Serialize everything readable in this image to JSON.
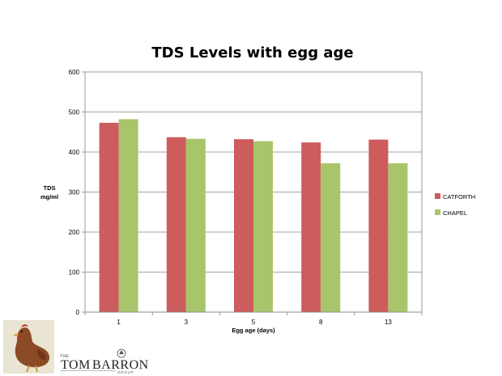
{
  "chart_data": {
    "type": "bar",
    "title": "TDS Levels with egg age",
    "xlabel": "Egg age (days)",
    "ylabel_lines": [
      "TDS",
      "mg/ml"
    ],
    "categories": [
      "1",
      "3",
      "5",
      "8",
      "13"
    ],
    "series": [
      {
        "name": "CATFORTH",
        "color": "#cd5c5c",
        "values": [
          473,
          437,
          432,
          424,
          431
        ]
      },
      {
        "name": "CHAPEL",
        "color": "#a9c56b",
        "values": [
          482,
          433,
          427,
          372,
          372
        ]
      }
    ],
    "ylim": [
      0,
      600
    ],
    "yticks": [
      0,
      100,
      200,
      300,
      400,
      500,
      600
    ],
    "grid": true,
    "legend": "right"
  },
  "branding": {
    "logo_the": "THE",
    "logo_name_first": "TOM",
    "logo_name_second": "BARRON",
    "logo_group": "GROUP",
    "mascot_icon": "hen-icon",
    "crest_icon": "crest-icon"
  }
}
